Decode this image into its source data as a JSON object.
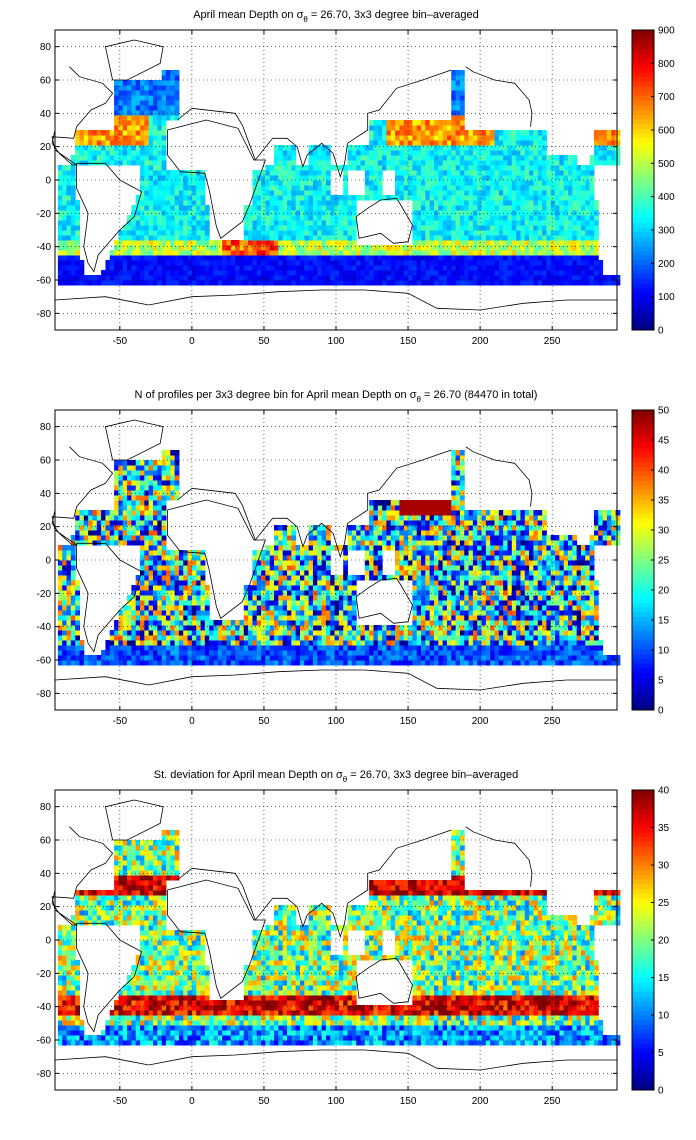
{
  "chart_data": [
    {
      "type": "heatmap",
      "title_prefix": "April mean Depth on ",
      "title_sigma": "σ",
      "title_sub": "θ",
      "title_suffix": " = 26.70, 3x3 degree bin–averaged",
      "x_ticks": [
        "-50",
        "0",
        "50",
        "100",
        "150",
        "200",
        "250"
      ],
      "y_ticks": [
        "80",
        "60",
        "40",
        "20",
        "0",
        "-20",
        "-40",
        "-60",
        "-80"
      ],
      "xlim": [
        -95,
        295
      ],
      "ylim": [
        -90,
        90
      ],
      "colorbar": {
        "min": 0,
        "max": 900,
        "ticks": [
          "900",
          "800",
          "700",
          "600",
          "500",
          "400",
          "300",
          "200",
          "100",
          "0"
        ]
      },
      "grid": true,
      "field": "mean depth"
    },
    {
      "type": "heatmap",
      "title_prefix": "N of profiles per 3x3 degree bin for April mean Depth on ",
      "title_sigma": "σ",
      "title_sub": "θ",
      "title_suffix": " = 26.70 (84470 in total)",
      "x_ticks": [
        "-50",
        "0",
        "50",
        "100",
        "150",
        "200",
        "250"
      ],
      "y_ticks": [
        "80",
        "60",
        "40",
        "20",
        "0",
        "-20",
        "-40",
        "-60",
        "-80"
      ],
      "xlim": [
        -95,
        295
      ],
      "ylim": [
        -90,
        90
      ],
      "colorbar": {
        "min": 0,
        "max": 50,
        "ticks": [
          "50",
          "45",
          "40",
          "35",
          "30",
          "25",
          "20",
          "15",
          "10",
          "5",
          "0"
        ]
      },
      "grid": true,
      "field": "profile count"
    },
    {
      "type": "heatmap",
      "title_prefix": "St. deviation for April mean Depth on ",
      "title_sigma": "σ",
      "title_sub": "θ",
      "title_suffix": " = 26.70, 3x3 degree bin–averaged",
      "x_ticks": [
        "-50",
        "0",
        "50",
        "100",
        "150",
        "200",
        "250"
      ],
      "y_ticks": [
        "80",
        "60",
        "40",
        "20",
        "0",
        "-20",
        "-40",
        "-60",
        "-80"
      ],
      "xlim": [
        -95,
        295
      ],
      "ylim": [
        -90,
        90
      ],
      "colorbar": {
        "min": 0,
        "max": 40,
        "ticks": [
          "40",
          "35",
          "30",
          "25",
          "20",
          "15",
          "10",
          "5",
          "0"
        ]
      },
      "grid": true,
      "field": "standard deviation"
    }
  ]
}
